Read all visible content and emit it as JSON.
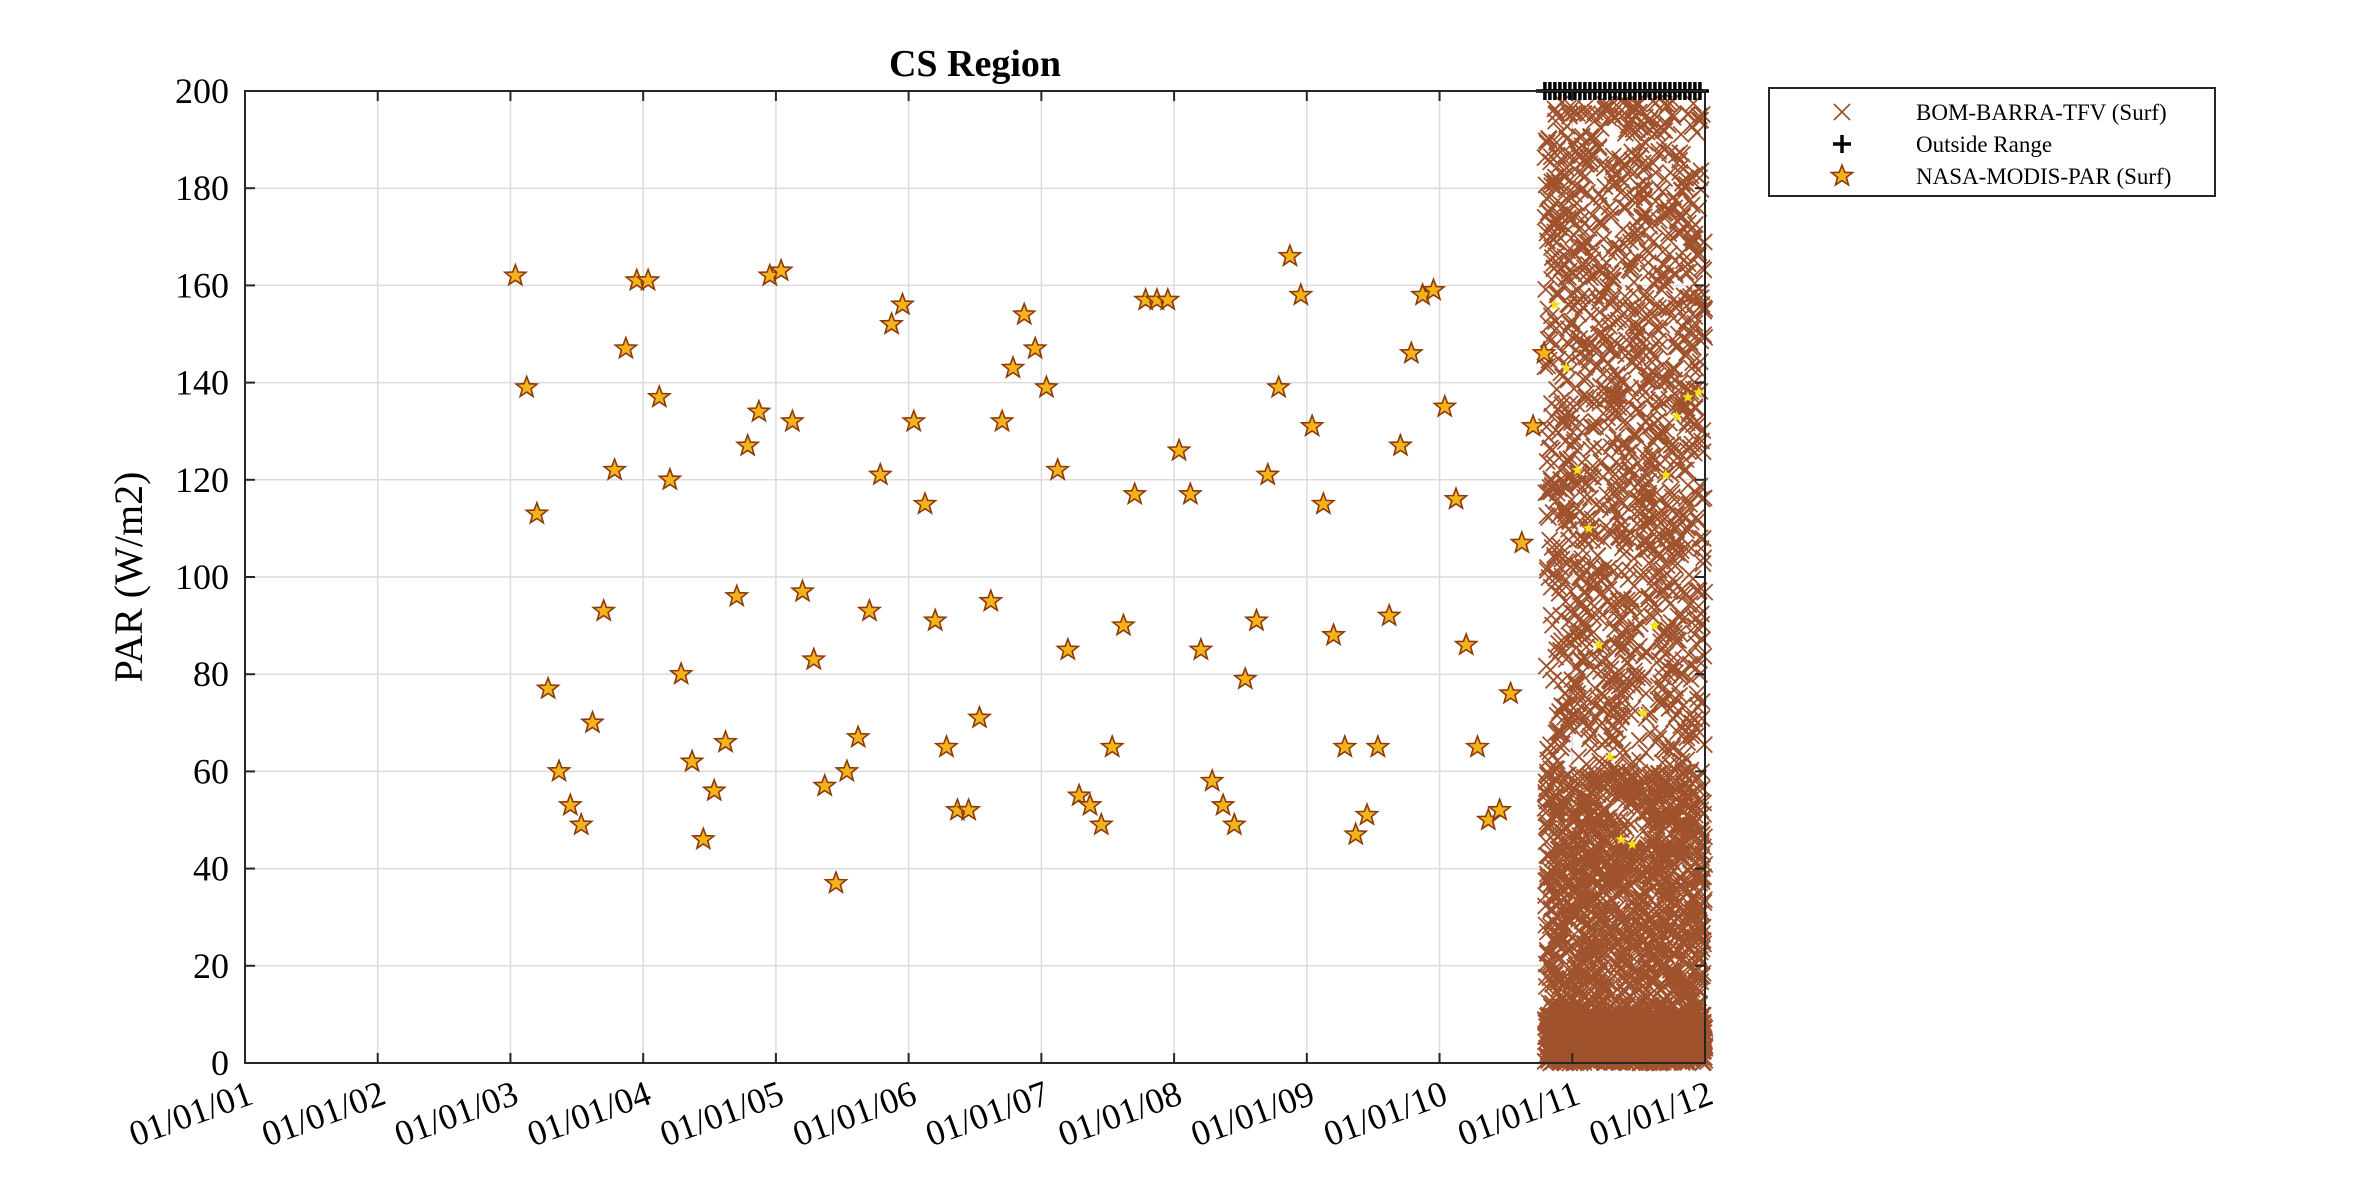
{
  "chart_data": {
    "type": "scatter",
    "title": "CS Region",
    "xlabel": "",
    "ylabel": "PAR (W/m2)",
    "ylim": [
      0,
      200
    ],
    "yticks": [
      0,
      20,
      40,
      60,
      80,
      100,
      120,
      140,
      160,
      180,
      200
    ],
    "xlim": [
      "2001-01-01",
      "2012-01-01"
    ],
    "xtick_labels": [
      "01/01/01",
      "01/01/02",
      "01/01/03",
      "01/01/04",
      "01/01/05",
      "01/01/06",
      "01/01/07",
      "01/01/08",
      "01/01/09",
      "01/01/10",
      "01/01/11",
      "01/01/12"
    ],
    "grid": true,
    "legend": {
      "placement": "outside-top-right",
      "entries": [
        "BOM-BARRA-TFV (Surf)",
        "Outside Range",
        "NASA-MODIS-PAR (Surf)"
      ]
    },
    "colors": {
      "barra": "#A0522D",
      "outside": "#000000",
      "modis_fill": "#F5B31B",
      "modis_edge": "#8B3A0A",
      "modis_inside_dense": "#F5E11B"
    },
    "series": [
      {
        "name": "NASA-MODIS-PAR (Surf)",
        "marker": "star",
        "x": [
          "2003-01-15",
          "2003-02-15",
          "2003-03-15",
          "2003-04-15",
          "2003-05-15",
          "2003-06-15",
          "2003-07-15",
          "2003-08-15",
          "2003-09-15",
          "2003-10-15",
          "2003-11-15",
          "2003-12-15",
          "2004-01-15",
          "2004-02-15",
          "2004-03-15",
          "2004-04-15",
          "2004-05-15",
          "2004-06-15",
          "2004-07-15",
          "2004-08-15",
          "2004-09-15",
          "2004-10-15",
          "2004-11-15",
          "2004-12-15",
          "2005-01-15",
          "2005-02-15",
          "2005-03-15",
          "2005-04-15",
          "2005-05-15",
          "2005-06-15",
          "2005-07-15",
          "2005-08-15",
          "2005-09-15",
          "2005-10-15",
          "2005-11-15",
          "2005-12-15",
          "2006-01-15",
          "2006-02-15",
          "2006-03-15",
          "2006-04-15",
          "2006-05-15",
          "2006-06-15",
          "2006-07-15",
          "2006-08-15",
          "2006-09-15",
          "2006-10-15",
          "2006-11-15",
          "2006-12-15",
          "2007-01-15",
          "2007-02-15",
          "2007-03-15",
          "2007-04-15",
          "2007-05-15",
          "2007-06-15",
          "2007-07-15",
          "2007-08-15",
          "2007-09-15",
          "2007-10-15",
          "2007-11-15",
          "2007-12-15",
          "2008-01-15",
          "2008-02-15",
          "2008-03-15",
          "2008-04-15",
          "2008-05-15",
          "2008-06-15",
          "2008-07-15",
          "2008-08-15",
          "2008-09-15",
          "2008-10-15",
          "2008-11-15",
          "2008-12-15",
          "2009-01-15",
          "2009-02-15",
          "2009-03-15",
          "2009-04-15",
          "2009-05-15",
          "2009-06-15",
          "2009-07-15",
          "2009-08-15",
          "2009-09-15",
          "2009-10-15",
          "2009-11-15",
          "2009-12-15",
          "2010-01-15",
          "2010-02-15",
          "2010-03-15",
          "2010-04-15",
          "2010-05-15",
          "2010-06-15",
          "2010-07-15",
          "2010-08-15",
          "2010-09-15",
          "2010-10-15",
          "2010-11-15",
          "2010-12-15",
          "2011-01-15",
          "2011-02-15",
          "2011-03-15",
          "2011-04-15",
          "2011-05-15",
          "2011-06-15",
          "2011-07-15",
          "2011-08-15",
          "2011-09-15",
          "2011-10-15",
          "2011-11-15",
          "2011-12-15"
        ],
        "y": [
          162,
          139,
          113,
          77,
          60,
          53,
          49,
          70,
          93,
          122,
          147,
          161,
          161,
          137,
          120,
          80,
          62,
          46,
          56,
          66,
          96,
          127,
          134,
          162,
          163,
          132,
          97,
          83,
          57,
          37,
          60,
          67,
          93,
          121,
          152,
          156,
          132,
          115,
          91,
          65,
          52,
          52,
          71,
          95,
          132,
          143,
          154,
          147,
          139,
          122,
          85,
          55,
          53,
          49,
          65,
          90,
          117,
          157,
          157,
          157,
          126,
          117,
          85,
          58,
          53,
          49,
          79,
          91,
          121,
          139,
          166,
          158,
          131,
          115,
          88,
          65,
          47,
          51,
          65,
          92,
          127,
          146,
          158,
          159,
          135,
          116,
          86,
          65,
          50,
          52,
          76,
          107,
          131,
          146,
          156,
          143,
          122,
          110,
          86,
          63,
          46,
          45,
          72,
          90,
          121,
          133,
          137,
          138
        ]
      },
      {
        "name": "BOM-BARRA-TFV (Surf)",
        "marker": "x",
        "x_range": [
          "2010-10-01",
          "2012-01-01"
        ],
        "y_range": [
          0,
          200
        ],
        "note_count": 0
      },
      {
        "name": "Outside Range",
        "marker": "plus",
        "x_range": [
          "2010-10-01",
          "2012-01-01"
        ],
        "y": 200
      }
    ]
  }
}
